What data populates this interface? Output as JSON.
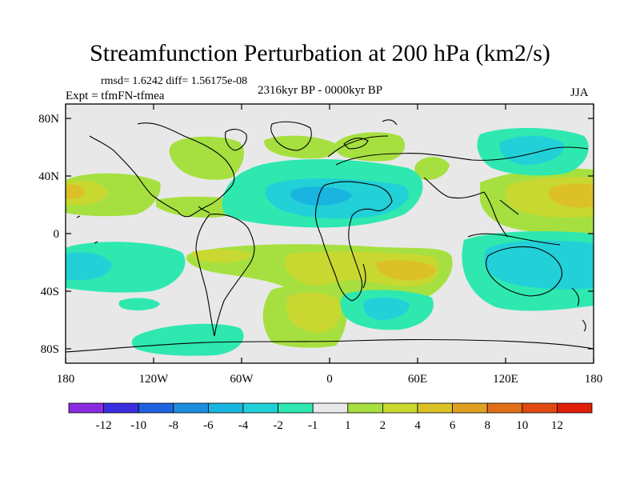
{
  "title": "Streamfunction Perturbation at 200 hPa (km2/s)",
  "stats": "rmsd= 1.6242 diff= 1.56175e-08",
  "experiment": "Expt = tfmFN-tfmea",
  "period": "2316kyr BP - 0000kyr BP",
  "season": "JJA",
  "chart_data": {
    "type": "heatmap",
    "map": "global equirectangular contour map",
    "lon_range": [
      -180,
      180
    ],
    "lat_range": [
      -90,
      90
    ],
    "lon_ticks": [
      {
        "value": -180,
        "label": "180"
      },
      {
        "value": -120,
        "label": "120W"
      },
      {
        "value": -60,
        "label": "60W"
      },
      {
        "value": 0,
        "label": "0"
      },
      {
        "value": 60,
        "label": "60E"
      },
      {
        "value": 120,
        "label": "120E"
      },
      {
        "value": 180,
        "label": "180"
      }
    ],
    "lat_ticks": [
      {
        "value": 80,
        "label": "80N"
      },
      {
        "value": 40,
        "label": "40N"
      },
      {
        "value": 0,
        "label": "0"
      },
      {
        "value": -40,
        "label": "40S"
      },
      {
        "value": -80,
        "label": "80S"
      }
    ],
    "colorbar": {
      "colors": [
        "#8a2be2",
        "#3b2de0",
        "#1f63e0",
        "#1d8fe0",
        "#19b4e0",
        "#22d0d8",
        "#2ee8b0",
        "#e8e8e8",
        "#a6e040",
        "#c8d830",
        "#dcc028",
        "#e0a020",
        "#e07018",
        "#e04a10",
        "#e01e0a"
      ],
      "labels": [
        "-12",
        "-10",
        "-8",
        "-6",
        "-4",
        "-2",
        "-1",
        "1",
        "2",
        "4",
        "6",
        "8",
        "10",
        "12"
      ]
    },
    "features": [
      {
        "name": "positive anomaly 2-4",
        "lon": -160,
        "lat": 28,
        "color": "#c8d830"
      },
      {
        "name": "positive anomaly 4-6",
        "lon": -170,
        "lat": 28,
        "color": "#dcc028"
      },
      {
        "name": "positive anomaly 1-2",
        "lon": -90,
        "lat": 60,
        "color": "#a6e040"
      },
      {
        "name": "negative anomaly -1 to -2",
        "lon": -55,
        "lat": 45,
        "color": "#2ee8b0"
      },
      {
        "name": "negative anomaly -2 to -4",
        "lon": -10,
        "lat": 30,
        "color": "#22d0d8"
      },
      {
        "name": "negative anomaly -4 to -6",
        "lon": -15,
        "lat": 25,
        "color": "#19b4e0"
      },
      {
        "name": "positive anomaly 1-2",
        "lon": -20,
        "lat": 65,
        "color": "#a6e040"
      },
      {
        "name": "positive anomaly 1-2",
        "lon": 40,
        "lat": 65,
        "color": "#a6e040"
      },
      {
        "name": "negative anomaly -2 to -4",
        "lon": 130,
        "lat": 60,
        "color": "#22d0d8"
      },
      {
        "name": "positive anomaly 4-6",
        "lon": 155,
        "lat": 30,
        "color": "#dcc028"
      },
      {
        "name": "positive anomaly 2-4",
        "lon": -10,
        "lat": -30,
        "color": "#c8d830"
      },
      {
        "name": "positive anomaly 4-6",
        "lon": 50,
        "lat": -25,
        "color": "#dcc028"
      },
      {
        "name": "negative anomaly -2 to -4",
        "lon": -165,
        "lat": -25,
        "color": "#22d0d8"
      },
      {
        "name": "negative anomaly -2 to -4",
        "lon": 130,
        "lat": -20,
        "color": "#22d0d8"
      },
      {
        "name": "negative anomaly -2 to -4",
        "lon": 45,
        "lat": -55,
        "color": "#22d0d8"
      },
      {
        "name": "negative anomaly -1 to -2",
        "lon": -90,
        "lat": -75,
        "color": "#2ee8b0"
      }
    ]
  }
}
